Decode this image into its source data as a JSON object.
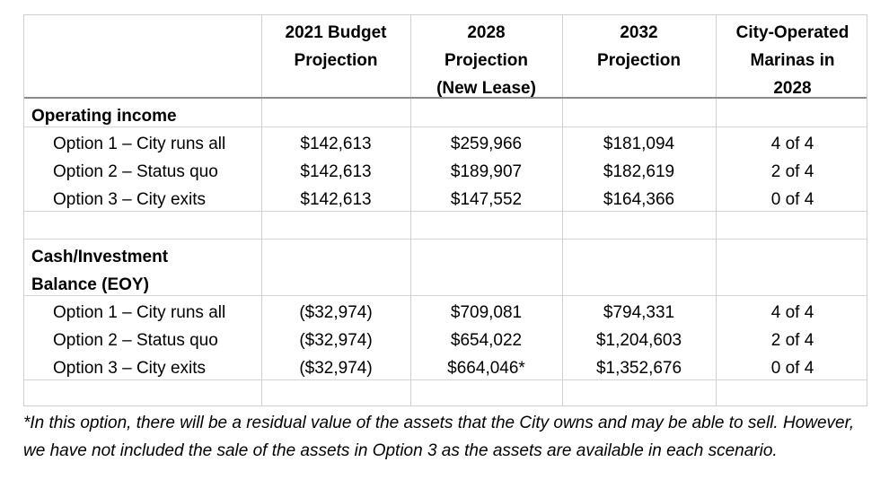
{
  "headers": [
    {
      "lines": [
        "2021 Budget",
        "Projection"
      ]
    },
    {
      "lines": [
        "2028",
        "Projection",
        "(New Lease)"
      ]
    },
    {
      "lines": [
        "2032",
        "Projection"
      ]
    },
    {
      "lines": [
        "City-Operated",
        "Marinas in",
        "2028"
      ]
    }
  ],
  "operating": {
    "title": "Operating income",
    "rows": [
      {
        "label": "Option 1 – City runs all",
        "v": [
          "$142,613",
          "$259,966",
          "$181,094",
          "4 of 4"
        ]
      },
      {
        "label": "Option 2 – Status quo",
        "v": [
          "$142,613",
          "$189,907",
          "$182,619",
          "2 of 4"
        ]
      },
      {
        "label": "Option 3 – City exits",
        "v": [
          "$142,613",
          "$147,552",
          "$164,366",
          "0 of 4"
        ]
      }
    ]
  },
  "cash": {
    "title_line1": "Cash/Investment",
    "title_line2": "Balance (EOY)",
    "rows": [
      {
        "label": "Option 1 – City runs all",
        "v": [
          "($32,974)",
          "$709,081",
          "$794,331",
          "4 of 4"
        ]
      },
      {
        "label": "Option 2 – Status quo",
        "v": [
          "($32,974)",
          "$654,022",
          "$1,204,603",
          "2 of 4"
        ]
      },
      {
        "label": "Option 3 – City exits",
        "v": [
          "($32,974)",
          "$664,046*",
          "$1,352,676",
          "0 of 4"
        ]
      }
    ]
  },
  "footnote": "*In this option, there will be a residual value of the assets that the City owns and may be able to sell. However, we have not included the sale of the assets in Option 3 as the assets are available in each scenario."
}
